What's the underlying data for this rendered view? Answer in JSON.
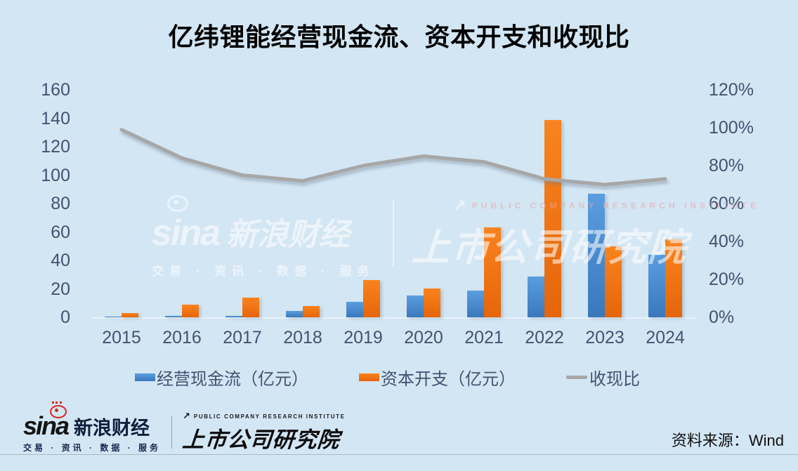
{
  "title": "亿纬锂能经营现金流、资本开支和收现比",
  "watermark": {
    "sina": "sina",
    "sina_cn": "新浪财经",
    "tagline": "交易 · 资讯 · 数据 · 服务",
    "institute_en": "PUBLIC COMPANY RESEARCH INSTITUTE",
    "institute_cn": "上市公司研究院"
  },
  "footer": {
    "sina": "sina",
    "sina_cn": "新浪财经",
    "tagline": "交易 · 资讯 · 数据 · 服务",
    "institute_en": "PUBLIC COMPANY RESEARCH INSTITUTE",
    "institute_cn": "上市公司研究院",
    "source": "资料来源：Wind"
  },
  "chart_data": {
    "type": "bar",
    "subtype": "combo-bar-line-dual-axis",
    "title": "亿纬锂能经营现金流、资本开支和收现比",
    "categories": [
      "2015",
      "2016",
      "2017",
      "2018",
      "2019",
      "2020",
      "2021",
      "2022",
      "2023",
      "2024"
    ],
    "series": [
      {
        "name": "经营现金流（亿元）",
        "type": "bar",
        "axis": "left",
        "color_top": "#5a9edf",
        "color_bottom": "#3a78bc",
        "values": [
          0.7,
          0.9,
          1.1,
          4.4,
          11,
          15.5,
          18.6,
          28.5,
          87,
          44
        ]
      },
      {
        "name": "资本开支（亿元）",
        "type": "bar",
        "axis": "left",
        "color_top": "#fa831e",
        "color_bottom": "#e6650a",
        "values": [
          3,
          9,
          14,
          8,
          26,
          20.5,
          63,
          139,
          50,
          55
        ]
      },
      {
        "name": "收现比",
        "type": "line",
        "axis": "right",
        "unit": "%",
        "color": "#a7a7a7",
        "values": [
          99,
          84,
          75,
          72,
          80,
          85,
          82,
          73,
          70,
          73
        ]
      }
    ],
    "left_axis": {
      "min": 0,
      "max": 160,
      "tick_step": 20,
      "tick_labels": [
        "0",
        "20",
        "40",
        "60",
        "80",
        "100",
        "120",
        "140",
        "160"
      ]
    },
    "right_axis": {
      "min": 0,
      "max": 120,
      "tick_step": 20,
      "tick_labels": [
        "0%",
        "20%",
        "40%",
        "60%",
        "80%",
        "100%",
        "120%"
      ]
    },
    "grid": false,
    "legend_position": "bottom",
    "background": "#d3e6f4",
    "axis_text_color": "#3f5570"
  }
}
